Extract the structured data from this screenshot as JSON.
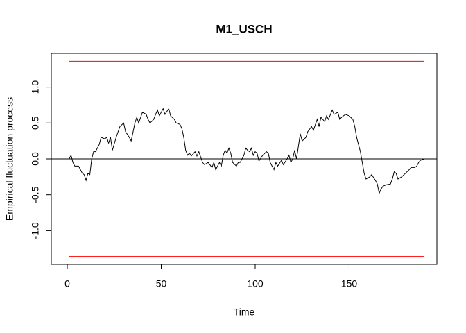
{
  "chart_data": {
    "type": "line",
    "title": "M1_USCH",
    "x_label": "Time",
    "y_label": "Empirical fluctuation process",
    "x": [
      1,
      2,
      3,
      4,
      6,
      8,
      9,
      10,
      11,
      12,
      13,
      14,
      15,
      17,
      18,
      20,
      21,
      22,
      23,
      24,
      26,
      28,
      30,
      31,
      33,
      34,
      36,
      37,
      38,
      40,
      42,
      43,
      44,
      46,
      47,
      48,
      49,
      51,
      52,
      54,
      55,
      57,
      58,
      60,
      61,
      62,
      63,
      64,
      65,
      66,
      68,
      69,
      70,
      72,
      73,
      75,
      77,
      78,
      79,
      81,
      82,
      83,
      84,
      85,
      86,
      87,
      88,
      90,
      91,
      92,
      94,
      95,
      96,
      97,
      98,
      99,
      100,
      101,
      102,
      104,
      106,
      107,
      108,
      110,
      111,
      112,
      114,
      115,
      117,
      118,
      119,
      120,
      121,
      122,
      124,
      125,
      127,
      128,
      130,
      131,
      133,
      134,
      135,
      137,
      138,
      139,
      141,
      142,
      144,
      145,
      146,
      148,
      150,
      152,
      153,
      154,
      155,
      156,
      157,
      158,
      159,
      161,
      162,
      164,
      165,
      166,
      167,
      168,
      170,
      172,
      173,
      174,
      175,
      176,
      178,
      180,
      182,
      183,
      185,
      186,
      187,
      188,
      190
    ],
    "values": [
      0.0,
      0.05,
      -0.05,
      -0.1,
      -0.1,
      -0.2,
      -0.22,
      -0.3,
      -0.2,
      -0.22,
      0.0,
      0.1,
      0.1,
      0.2,
      0.3,
      0.28,
      0.3,
      0.22,
      0.3,
      0.12,
      0.3,
      0.45,
      0.5,
      0.38,
      0.3,
      0.25,
      0.5,
      0.58,
      0.5,
      0.65,
      0.62,
      0.55,
      0.5,
      0.55,
      0.62,
      0.68,
      0.6,
      0.7,
      0.62,
      0.7,
      0.6,
      0.55,
      0.5,
      0.48,
      0.42,
      0.3,
      0.12,
      0.05,
      0.08,
      0.04,
      0.1,
      0.04,
      0.1,
      -0.05,
      -0.08,
      -0.05,
      -0.12,
      -0.05,
      -0.15,
      -0.05,
      -0.1,
      0.05,
      0.12,
      0.08,
      0.15,
      0.08,
      -0.05,
      -0.1,
      -0.05,
      -0.05,
      0.05,
      0.15,
      0.12,
      0.1,
      0.15,
      0.05,
      0.1,
      0.08,
      -0.03,
      0.05,
      0.1,
      0.08,
      -0.05,
      -0.15,
      -0.05,
      -0.1,
      -0.02,
      -0.08,
      0.0,
      0.05,
      -0.05,
      0.0,
      0.12,
      0.0,
      0.35,
      0.25,
      0.3,
      0.38,
      0.45,
      0.4,
      0.55,
      0.45,
      0.58,
      0.52,
      0.6,
      0.55,
      0.68,
      0.62,
      0.65,
      0.55,
      0.58,
      0.62,
      0.6,
      0.55,
      0.45,
      0.3,
      0.2,
      0.1,
      -0.05,
      -0.2,
      -0.28,
      -0.25,
      -0.22,
      -0.3,
      -0.35,
      -0.48,
      -0.42,
      -0.38,
      -0.36,
      -0.35,
      -0.28,
      -0.18,
      -0.2,
      -0.28,
      -0.25,
      -0.2,
      -0.15,
      -0.12,
      -0.12,
      -0.1,
      -0.05,
      -0.02,
      0.0
    ],
    "color": "#000000",
    "boundary": {
      "x": [
        1,
        190
      ],
      "upper": 1.36,
      "lower": -1.36,
      "color": "#ff0000"
    },
    "reference_line": 0,
    "xlim": [
      -8.5,
      196.7
    ],
    "ylim": [
      -1.47,
      1.47
    ],
    "xticks": [
      0,
      50,
      100,
      150
    ],
    "yticks": [
      {
        "value": -1,
        "label": "-1.0"
      },
      -0.5,
      {
        "value": 0,
        "label": "0.0"
      },
      0.5,
      {
        "value": 1,
        "label": "1.0"
      }
    ]
  }
}
